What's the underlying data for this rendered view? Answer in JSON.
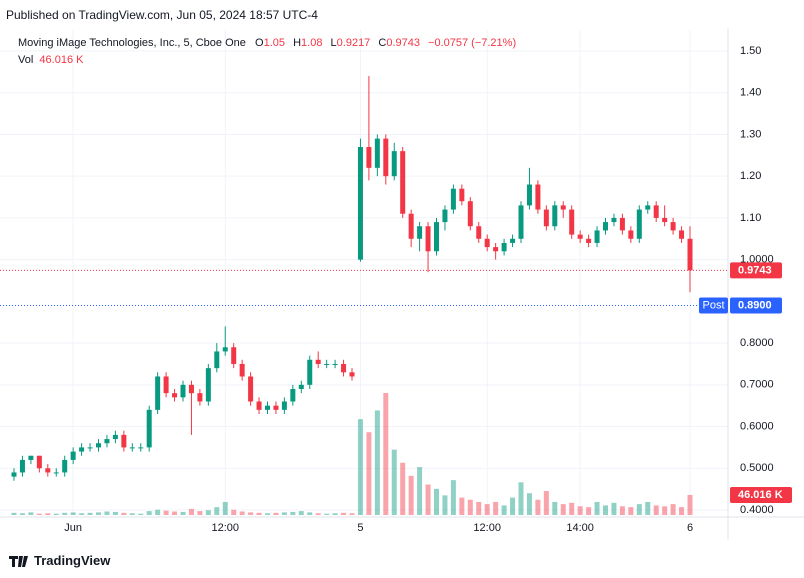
{
  "published": "Published on TradingView.com, Jun 05, 2024 18:57 UTC-4",
  "footer": "TradingView",
  "chart_data": {
    "type": "candlestick",
    "title": "Moving iMage Technologies, Inc., 5, Cboe One",
    "legend_labels": {
      "open": "O",
      "high": "H",
      "low": "L",
      "close": "C",
      "volume": "Vol"
    },
    "change_label": "−0.0757 (−7.21%)",
    "volume_label": "46.016 K",
    "post_label": "Post",
    "post_price": 0.89,
    "post_price_label": "0.8900",
    "up_color": "#089981",
    "down_color": "#f23645",
    "post_color": "#2962ff",
    "grid": true,
    "categories": [
      null,
      null,
      null,
      null,
      null,
      null,
      null,
      "Jun",
      null,
      null,
      null,
      null,
      null,
      null,
      null,
      null,
      null,
      null,
      null,
      null,
      null,
      null,
      null,
      null,
      null,
      "12:00",
      null,
      null,
      null,
      null,
      null,
      null,
      null,
      null,
      null,
      null,
      null,
      null,
      null,
      null,
      null,
      "5",
      null,
      null,
      null,
      null,
      null,
      null,
      null,
      null,
      null,
      null,
      null,
      null,
      null,
      null,
      "12:00",
      null,
      null,
      null,
      null,
      null,
      null,
      null,
      null,
      null,
      null,
      "14:00",
      null,
      null,
      null,
      null,
      null,
      null,
      null,
      null,
      null,
      null,
      null,
      null,
      "6"
    ],
    "open": [
      0.48,
      0.49,
      0.52,
      0.53,
      0.5,
      0.49,
      0.49,
      0.52,
      0.54,
      0.55,
      0.55,
      0.56,
      0.57,
      0.58,
      0.55,
      0.55,
      0.55,
      0.64,
      0.72,
      0.68,
      0.67,
      0.7,
      0.68,
      0.66,
      0.74,
      0.78,
      0.79,
      0.75,
      0.72,
      0.66,
      0.64,
      0.65,
      0.64,
      0.66,
      0.69,
      0.7,
      0.76,
      0.75,
      0.75,
      0.75,
      0.73,
      1.0,
      1.27,
      1.22,
      1.29,
      1.2,
      1.26,
      1.11,
      1.05,
      1.08,
      1.02,
      1.09,
      1.12,
      1.17,
      1.14,
      1.08,
      1.05,
      1.03,
      1.02,
      1.04,
      1.05,
      1.13,
      1.18,
      1.12,
      1.08,
      1.13,
      1.12,
      1.06,
      1.05,
      1.04,
      1.07,
      1.09,
      1.1,
      1.07,
      1.05,
      1.12,
      1.13,
      1.1,
      1.09,
      1.07,
      1.05
    ],
    "high": [
      0.5,
      0.53,
      0.53,
      0.53,
      0.51,
      0.5,
      0.53,
      0.55,
      0.56,
      0.56,
      0.57,
      0.58,
      0.59,
      0.59,
      0.56,
      0.56,
      0.65,
      0.73,
      0.73,
      0.69,
      0.71,
      0.71,
      0.69,
      0.75,
      0.8,
      0.84,
      0.8,
      0.76,
      0.73,
      0.67,
      0.66,
      0.66,
      0.67,
      0.7,
      0.71,
      0.77,
      0.78,
      0.76,
      0.76,
      0.76,
      0.74,
      1.29,
      1.44,
      1.3,
      1.3,
      1.28,
      1.27,
      1.12,
      1.09,
      1.09,
      1.1,
      1.13,
      1.18,
      1.18,
      1.15,
      1.09,
      1.06,
      1.04,
      1.05,
      1.06,
      1.14,
      1.22,
      1.19,
      1.13,
      1.14,
      1.14,
      1.13,
      1.07,
      1.06,
      1.08,
      1.1,
      1.11,
      1.11,
      1.08,
      1.13,
      1.14,
      1.14,
      1.13,
      1.1,
      1.08,
      1.08
    ],
    "low": [
      0.47,
      0.48,
      0.51,
      0.49,
      0.48,
      0.48,
      0.48,
      0.51,
      0.53,
      0.54,
      0.54,
      0.55,
      0.56,
      0.54,
      0.54,
      0.54,
      0.54,
      0.63,
      0.67,
      0.66,
      0.66,
      0.58,
      0.65,
      0.65,
      0.73,
      0.77,
      0.74,
      0.71,
      0.65,
      0.63,
      0.63,
      0.63,
      0.63,
      0.65,
      0.68,
      0.69,
      0.74,
      0.74,
      0.74,
      0.72,
      0.71,
      0.995,
      1.19,
      1.2,
      1.18,
      1.19,
      1.1,
      1.03,
      1.02,
      0.97,
      1.01,
      1.07,
      1.11,
      1.13,
      1.07,
      1.04,
      1.02,
      1.0,
      1.01,
      1.03,
      1.04,
      1.12,
      1.11,
      1.07,
      1.07,
      1.1,
      1.05,
      1.04,
      1.03,
      1.03,
      1.06,
      1.08,
      1.06,
      1.04,
      1.04,
      1.11,
      1.09,
      1.08,
      1.06,
      1.04,
      0.9217
    ],
    "close": [
      0.49,
      0.52,
      0.53,
      0.5,
      0.49,
      0.49,
      0.52,
      0.54,
      0.55,
      0.55,
      0.56,
      0.57,
      0.58,
      0.55,
      0.55,
      0.55,
      0.64,
      0.72,
      0.68,
      0.67,
      0.7,
      0.68,
      0.66,
      0.74,
      0.78,
      0.79,
      0.75,
      0.72,
      0.66,
      0.64,
      0.65,
      0.64,
      0.66,
      0.69,
      0.7,
      0.76,
      0.75,
      0.75,
      0.75,
      0.73,
      0.72,
      1.27,
      1.22,
      1.29,
      1.2,
      1.26,
      1.11,
      1.05,
      1.08,
      1.02,
      1.09,
      1.12,
      1.17,
      1.14,
      1.08,
      1.05,
      1.03,
      1.02,
      1.04,
      1.05,
      1.13,
      1.18,
      1.12,
      1.08,
      1.13,
      1.12,
      1.06,
      1.05,
      1.04,
      1.07,
      1.09,
      1.1,
      1.07,
      1.05,
      1.12,
      1.13,
      1.1,
      1.09,
      1.07,
      1.05,
      0.9743
    ],
    "volume": [
      5,
      4,
      6,
      3,
      4,
      3,
      5,
      6,
      4,
      5,
      6,
      8,
      7,
      5,
      4,
      3,
      9,
      12,
      10,
      8,
      7,
      14,
      9,
      11,
      18,
      30,
      12,
      8,
      6,
      5,
      4,
      5,
      6,
      7,
      9,
      6,
      4,
      3,
      4,
      5,
      4,
      220,
      190,
      240,
      280,
      150,
      120,
      90,
      110,
      70,
      60,
      45,
      80,
      40,
      35,
      30,
      25,
      30,
      22,
      40,
      75,
      50,
      35,
      55,
      30,
      25,
      28,
      20,
      18,
      30,
      22,
      28,
      20,
      18,
      25,
      30,
      22,
      20,
      25,
      18,
      46.016
    ],
    "ylim": [
      0.4,
      1.5
    ],
    "yticks": [
      {
        "value": 0.4,
        "label": "0.4000"
      },
      {
        "value": 0.5,
        "label": "0.5000"
      },
      {
        "value": 0.6,
        "label": "0.6000"
      },
      {
        "value": 0.7,
        "label": "0.7000"
      },
      {
        "value": 0.8,
        "label": "0.8000"
      },
      {
        "value": 1.0,
        "label": "1.0000"
      },
      {
        "value": 1.1,
        "label": "1.10"
      },
      {
        "value": 1.2,
        "label": "1.20"
      },
      {
        "value": 1.3,
        "label": "1.30"
      },
      {
        "value": 1.4,
        "label": "1.40"
      },
      {
        "value": 1.5,
        "label": "1.50"
      }
    ]
  }
}
